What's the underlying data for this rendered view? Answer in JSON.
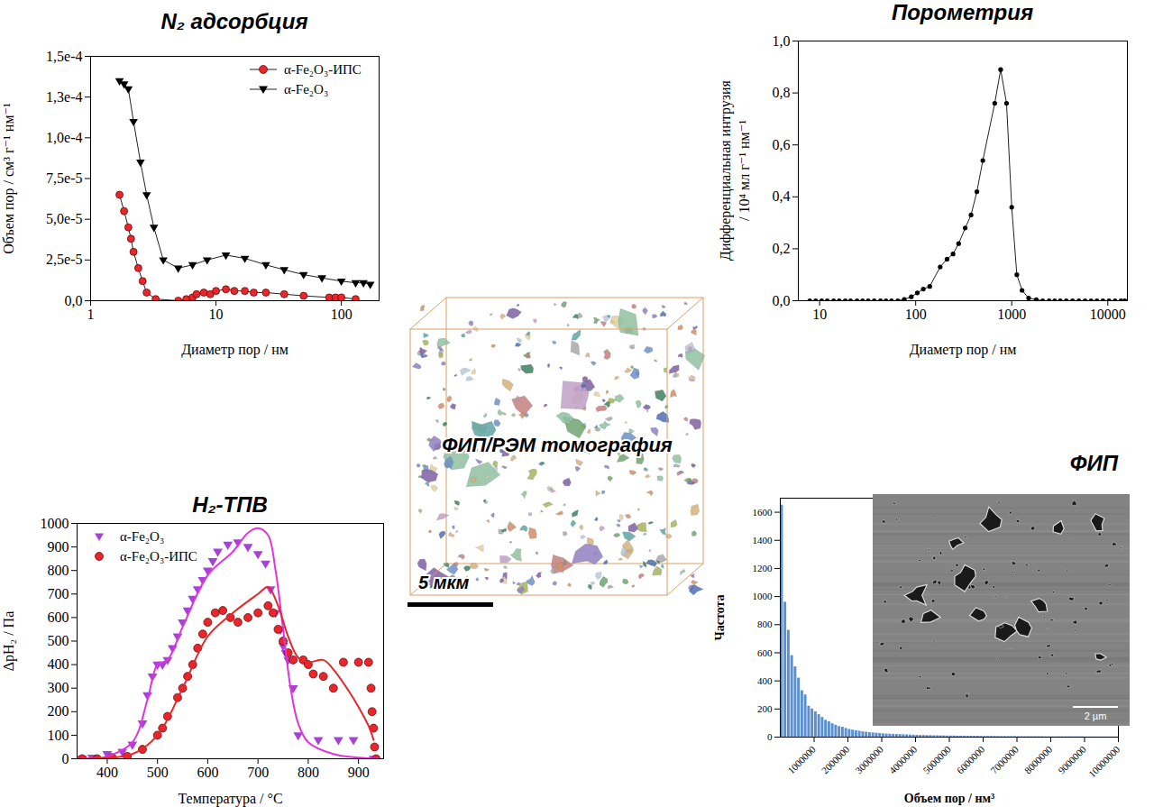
{
  "chart_data": [
    {
      "type": "line",
      "title": "N₂ адсорбция",
      "x_label": "Диаметр пор / нм",
      "y_label": "Объем пор / см³ г⁻¹ нм⁻¹",
      "log": "x",
      "xlim": [
        1,
        200
      ],
      "xticks": [
        1,
        10,
        100
      ],
      "ylim": [
        0,
        0.00015
      ],
      "yticks": [
        {
          "value": 0,
          "label": "0,0"
        },
        {
          "value": 2.5e-05,
          "label": "2,5e-5"
        },
        {
          "value": 5e-05,
          "label": "5,0e-5"
        },
        {
          "value": 7.5e-05,
          "label": "7,5e-5"
        },
        {
          "value": 0.0001,
          "label": "1,0e-4"
        },
        {
          "value": 0.000125,
          "label": "1,3e-4"
        },
        {
          "value": 0.00015,
          "label": "1,5e-4"
        }
      ],
      "legend": "top-right",
      "grid": false,
      "series": [
        {
          "name": "α-Fe₂O₃-ИПС",
          "color": "#e8262b",
          "marker": "circle",
          "x": [
            1.7,
            1.85,
            2.0,
            2.1,
            2.2,
            2.4,
            2.6,
            2.8,
            3.3,
            5,
            5.8,
            6.5,
            7,
            8,
            9,
            10,
            12,
            14,
            17,
            20,
            25,
            35,
            50,
            80,
            90,
            100,
            130
          ],
          "values": [
            6.5e-05,
            5.5e-05,
            4.5e-05,
            3.8e-05,
            3e-05,
            2e-05,
            1.2e-05,
            5e-06,
            1e-06,
            0,
            1e-06,
            2e-06,
            4e-06,
            5e-06,
            4e-06,
            6e-06,
            7e-06,
            6e-06,
            6e-06,
            5e-06,
            5e-06,
            4e-06,
            3e-06,
            2e-06,
            2e-06,
            2e-06,
            1e-06
          ]
        },
        {
          "name": "α-Fe₂O₃",
          "color": "#000000",
          "marker": "triangle-down",
          "x": [
            1.7,
            1.85,
            2.0,
            2.2,
            2.5,
            2.8,
            3.2,
            3.8,
            5,
            6.5,
            8.5,
            12,
            17,
            25,
            35,
            50,
            70,
            100,
            130,
            150,
            170
          ],
          "values": [
            0.000135,
            0.000133,
            0.00013,
            0.00011,
            8.5e-05,
            6.5e-05,
            4.5e-05,
            2.5e-05,
            2e-05,
            2.2e-05,
            2.5e-05,
            2.8e-05,
            2.6e-05,
            2.2e-05,
            1.9e-05,
            1.6e-05,
            1.4e-05,
            1.2e-05,
            1.1e-05,
            1.1e-05,
            1e-05
          ]
        }
      ]
    },
    {
      "type": "line",
      "title": "Порометрия",
      "x_label": "Диаметр пор / нм",
      "y_label": "Дифференциальная интрузия / 10⁴ мл г⁻¹ нм⁻¹",
      "log": "x",
      "xlim": [
        6,
        16000
      ],
      "xticks": [
        10,
        100,
        1000,
        10000
      ],
      "ylim": [
        0,
        1.0
      ],
      "yticks": [
        {
          "value": 0,
          "label": "0,0"
        },
        {
          "value": 0.2,
          "label": "0,2"
        },
        {
          "value": 0.4,
          "label": "0,4"
        },
        {
          "value": 0.6,
          "label": "0,6"
        },
        {
          "value": 0.8,
          "label": "0,8"
        },
        {
          "value": 1.0,
          "label": "1,0"
        }
      ],
      "grid": false,
      "series": [
        {
          "color": "#000000",
          "marker": "circle",
          "x": [
            7.9,
            9.1,
            10.5,
            12,
            14,
            16,
            18.5,
            21,
            24.5,
            28,
            32,
            37,
            43,
            49,
            56,
            65,
            76,
            90,
            104,
            120,
            140,
            180,
            212,
            245,
            280,
            328,
            377,
            434,
            500,
            665,
            767,
            883,
            1000,
            1130,
            1280,
            1500,
            1800,
            2100,
            2450,
            2800,
            3200,
            3700,
            4300,
            5000,
            5800,
            6700,
            7700,
            8900,
            10300,
            11900,
            13700,
            15000
          ],
          "values": [
            0,
            0,
            0,
            0,
            0,
            0,
            0,
            0,
            0,
            0,
            0,
            0,
            0,
            0,
            0,
            0,
            0.005,
            0.015,
            0.03,
            0.045,
            0.055,
            0.13,
            0.16,
            0.18,
            0.22,
            0.28,
            0.33,
            0.42,
            0.54,
            0.76,
            0.89,
            0.76,
            0.36,
            0.1,
            0.04,
            0.01,
            0.004,
            0,
            0,
            0,
            0,
            0,
            0,
            0,
            0,
            0,
            0,
            0,
            0,
            0,
            0,
            0
          ]
        }
      ]
    },
    {
      "type": "scatter",
      "title": "H₂-ТПВ",
      "x_label": "Температура / °C",
      "y_label": "ΔpH₂ / Па",
      "xlim": [
        340,
        950
      ],
      "xticks": [
        400,
        500,
        600,
        700,
        800,
        900
      ],
      "ylim": [
        0,
        1000
      ],
      "yticks": [
        0,
        100,
        200,
        300,
        400,
        500,
        600,
        700,
        800,
        900,
        1000
      ],
      "legend": "top-left",
      "grid": false,
      "series": [
        {
          "name": "α-Fe₂O₃",
          "type": "scatter",
          "color": "#a742d6",
          "marker": "triangle-down",
          "x": [
            350,
            370,
            400,
            430,
            450,
            470,
            480,
            490,
            500,
            510,
            520,
            530,
            540,
            550,
            560,
            570,
            580,
            590,
            600,
            610,
            620,
            640,
            660,
            680,
            700,
            715,
            725,
            735,
            745,
            750,
            755,
            760,
            770,
            780,
            820,
            860,
            890,
            930
          ],
          "values": [
            0,
            5,
            20,
            30,
            60,
            150,
            270,
            350,
            400,
            400,
            420,
            470,
            520,
            580,
            630,
            680,
            720,
            760,
            800,
            840,
            880,
            910,
            920,
            900,
            870,
            830,
            720,
            620,
            550,
            480,
            450,
            420,
            300,
            100,
            80,
            80,
            80,
            0
          ]
        },
        {
          "name": "α-Fe₂O₃-ИПС",
          "type": "scatter",
          "color": "#e8262b",
          "marker": "circle",
          "x": [
            350,
            380,
            410,
            440,
            470,
            500,
            510,
            520,
            540,
            550,
            560,
            570,
            580,
            590,
            600,
            615,
            630,
            645,
            660,
            680,
            700,
            720,
            730,
            740,
            750,
            760,
            770,
            790,
            800,
            810,
            830,
            850,
            870,
            900,
            920,
            925,
            927,
            930,
            932,
            935
          ],
          "values": [
            0,
            0,
            5,
            10,
            40,
            100,
            130,
            180,
            260,
            300,
            350,
            400,
            470,
            530,
            580,
            620,
            630,
            600,
            580,
            600,
            620,
            650,
            620,
            550,
            500,
            450,
            420,
            420,
            400,
            360,
            350,
            300,
            410,
            410,
            410,
            300,
            200,
            130,
            50,
            0
          ]
        },
        {
          "type": "line",
          "color": "#e033e0",
          "x": [
            350,
            400,
            450,
            480,
            500,
            520,
            550,
            600,
            650,
            680,
            700,
            720,
            735,
            750,
            765,
            780,
            800,
            850,
            900,
            940
          ],
          "values": [
            0,
            10,
            70,
            250,
            400,
            420,
            560,
            780,
            880,
            960,
            980,
            950,
            800,
            550,
            300,
            150,
            70,
            20,
            5,
            0
          ]
        },
        {
          "type": "line",
          "color": "#e8262b",
          "x": [
            350,
            450,
            500,
            550,
            600,
            650,
            700,
            720,
            740,
            760,
            780,
            800,
            830,
            850,
            880,
            900,
            920,
            930
          ],
          "values": [
            0,
            20,
            100,
            300,
            520,
            620,
            700,
            730,
            650,
            520,
            430,
            410,
            420,
            380,
            290,
            220,
            140,
            80
          ]
        }
      ]
    },
    {
      "type": "histogram",
      "title": "ФИП",
      "x_label": "Объем пор / нм³",
      "y_label": "Частота",
      "color": "#5b8fd0",
      "grid": false,
      "xlim": [
        0,
        10000000
      ],
      "xticks": [
        1000000,
        2000000,
        3000000,
        4000000,
        5000000,
        6000000,
        7000000,
        8000000,
        9000000,
        10000000
      ],
      "ylim": [
        0,
        1700
      ],
      "yticks": [
        0,
        200,
        400,
        600,
        800,
        1000,
        1200,
        1400,
        1600
      ],
      "bins": [
        0,
        100000,
        200000,
        300000,
        400000,
        500000,
        600000,
        700000,
        800000,
        900000,
        1000000,
        1100000,
        1200000,
        1300000,
        1400000,
        1500000,
        1600000,
        1700000,
        1800000,
        1900000,
        2000000,
        2100000,
        2200000,
        2300000,
        2400000,
        2500000,
        2600000,
        2700000,
        2800000,
        2900000,
        3000000,
        3100000,
        3200000,
        3300000,
        3400000,
        3500000,
        3600000,
        3700000,
        3800000,
        3900000,
        4000000,
        4100000,
        4200000,
        4300000,
        4400000,
        4500000,
        4600000,
        4700000,
        4800000,
        4900000,
        5000000,
        5100000,
        5200000,
        5300000,
        5400000,
        5500000,
        5600000,
        5700000,
        5800000,
        5900000,
        6000000,
        6100000,
        6200000,
        6300000,
        6400000,
        6500000,
        6600000,
        6700000,
        6800000,
        6900000,
        7000000,
        7100000,
        7200000,
        7300000,
        7400000,
        7500000,
        7600000,
        7700000,
        7800000,
        7900000,
        8000000,
        8100000,
        8200000,
        8300000,
        8400000,
        8500000,
        8600000,
        8700000,
        8800000,
        8900000,
        9000000,
        9100000,
        9200000,
        9300000,
        9400000,
        9500000,
        9600000,
        9700000,
        9800000,
        9900000,
        10000000
      ],
      "counts": [
        1650,
        960,
        760,
        580,
        500,
        420,
        330,
        300,
        220,
        200,
        180,
        160,
        140,
        120,
        110,
        95,
        85,
        75,
        70,
        62,
        55,
        50,
        45,
        42,
        38,
        35,
        32,
        30,
        28,
        26,
        24,
        22,
        21,
        20,
        19,
        18,
        17,
        16,
        15,
        14,
        13,
        12,
        12,
        11,
        11,
        10,
        10,
        9,
        9,
        8,
        8,
        8,
        7,
        7,
        7,
        6,
        6,
        6,
        6,
        5,
        5,
        5,
        5,
        5,
        4,
        4,
        4,
        4,
        4,
        4,
        3,
        3,
        3,
        3,
        3,
        3,
        3,
        3,
        2,
        2,
        2,
        2,
        2,
        2,
        2,
        2,
        2,
        2,
        2,
        2,
        1,
        1,
        1,
        1,
        1,
        1,
        1,
        1,
        1,
        1
      ]
    }
  ],
  "tomography": {
    "label": "ФИП/РЭМ томография",
    "scale_bar": "5 мкм"
  },
  "sem_image": {
    "scale_bar": "2 µm"
  }
}
